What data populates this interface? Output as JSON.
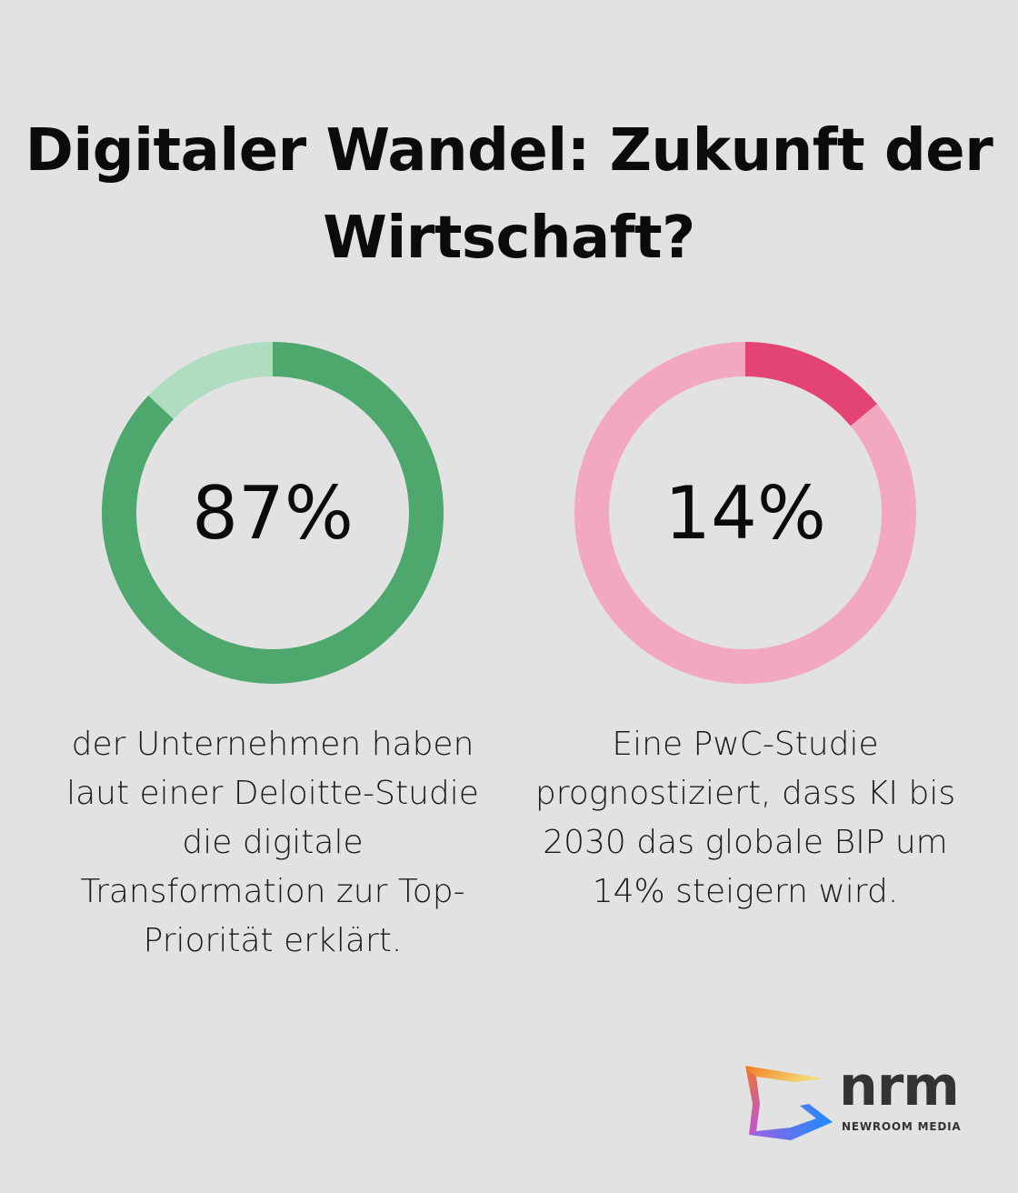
{
  "title": "Digitaler Wandel: Zukunft der Wirtschaft?",
  "chart_data": [
    {
      "type": "pie",
      "donut": true,
      "value": 87,
      "label": "87%",
      "description": "der Unternehmen haben laut einer Deloitte-Studie die digitale Transformation zur Top-Priorität erklärt.",
      "colors": {
        "value": "#4ea86d",
        "remainder": "#b0dcc0"
      }
    },
    {
      "type": "pie",
      "donut": true,
      "value": 14,
      "label": "14%",
      "description": "Eine PwC-Studie prognostiziert, dass KI bis 2030 das globale BIP um 14% steigern wird.",
      "colors": {
        "value": "#e44474",
        "remainder": "#f2a8bf"
      }
    }
  ],
  "logo": {
    "word": "nrm",
    "subtitle": "NEWROOM MEDIA"
  }
}
